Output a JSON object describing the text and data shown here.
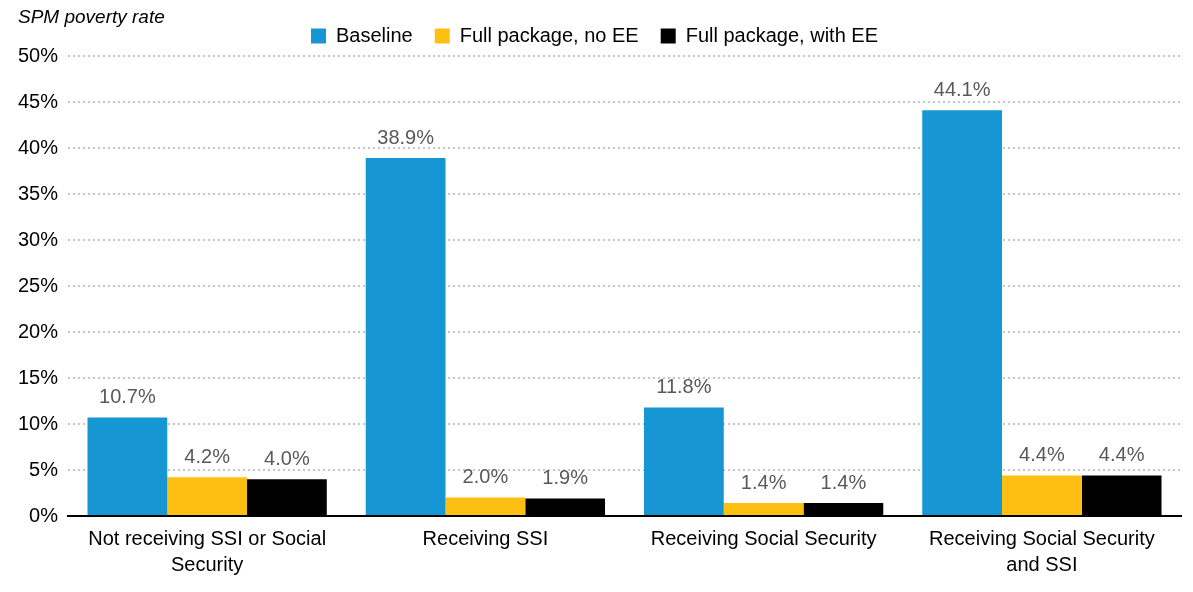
{
  "chart_data": {
    "type": "bar",
    "ylabel": "SPM poverty rate",
    "categories": [
      "Not receiving SSI or Social Security",
      "Receiving SSI",
      "Receiving Social Security",
      "Receiving Social Security and SSI"
    ],
    "series": [
      {
        "name": "Baseline",
        "color": "#1696d2",
        "values": [
          10.7,
          38.9,
          11.8,
          44.1
        ],
        "value_labels": [
          "10.7%",
          "38.9%",
          "11.8%",
          "44.1%"
        ]
      },
      {
        "name": "Full package, no EE",
        "color": "#fdbf11",
        "values": [
          4.2,
          2.0,
          1.4,
          4.4
        ],
        "value_labels": [
          "4.2%",
          "2.0%",
          "1.4%",
          "4.4%"
        ]
      },
      {
        "name": "Full package, with EE",
        "color": "#000000",
        "values": [
          4.0,
          1.9,
          1.4,
          4.4
        ],
        "value_labels": [
          "4.0%",
          "1.9%",
          "1.4%",
          "4.4%"
        ]
      }
    ],
    "ylim": [
      0,
      50
    ],
    "yticks": [
      {
        "value": 0,
        "label": "0%"
      },
      {
        "value": 5,
        "label": "5%"
      },
      {
        "value": 10,
        "label": "10%"
      },
      {
        "value": 15,
        "label": "15%"
      },
      {
        "value": 20,
        "label": "20%"
      },
      {
        "value": 25,
        "label": "25%"
      },
      {
        "value": 30,
        "label": "30%"
      },
      {
        "value": 35,
        "label": "35%"
      },
      {
        "value": 40,
        "label": "40%"
      },
      {
        "value": 45,
        "label": "45%"
      },
      {
        "value": 50,
        "label": "50%"
      }
    ],
    "grid": "y",
    "legend": "top"
  }
}
